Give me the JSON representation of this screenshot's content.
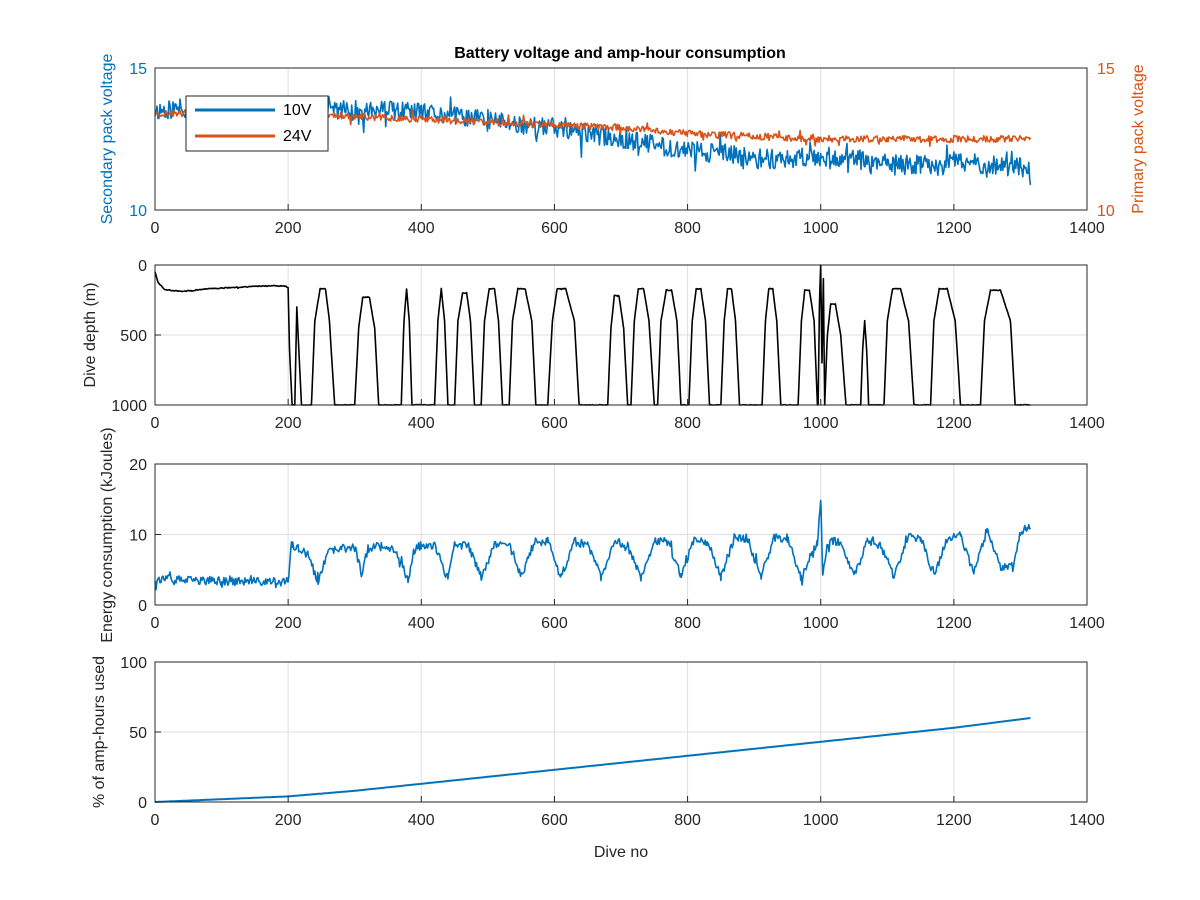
{
  "figure": {
    "title": "Battery voltage and amp-hour consumption"
  },
  "colors": {
    "blue": "#0072BD",
    "orange": "#D95319",
    "black": "#000000",
    "grid": "#dfdfdf",
    "axis": "#262626"
  },
  "chart_data": [
    {
      "id": "voltage",
      "type": "line",
      "title": "Battery voltage and amp-hour consumption",
      "xlabel": "",
      "ylabel": "Secondary pack voltage",
      "y2label": "Primary pack voltage",
      "xlim": [
        0,
        1400
      ],
      "ylim": [
        10,
        15
      ],
      "y2lim": [
        10,
        15
      ],
      "xticks": [
        0,
        200,
        400,
        600,
        800,
        1000,
        1200,
        1400
      ],
      "yticks": [
        10,
        15
      ],
      "y2ticks": [
        10,
        15
      ],
      "grid": true,
      "legend": {
        "placement": "top-left",
        "entries": [
          "10V",
          "24V"
        ]
      },
      "series": [
        {
          "name": "10V",
          "color": "#0072BD",
          "axis": "left",
          "noise": 0.35,
          "seed": 11,
          "x": [
            0,
            50,
            100,
            150,
            200,
            250,
            300,
            350,
            400,
            450,
            500,
            550,
            600,
            650,
            700,
            750,
            800,
            850,
            900,
            950,
            1000,
            1050,
            1100,
            1150,
            1200,
            1250,
            1300,
            1315
          ],
          "y": [
            13.5,
            13.6,
            13.6,
            13.5,
            13.6,
            13.6,
            13.5,
            13.5,
            13.4,
            13.3,
            13.2,
            13.0,
            12.9,
            12.7,
            12.5,
            12.3,
            12.1,
            12.0,
            11.8,
            11.8,
            11.9,
            11.8,
            11.6,
            11.6,
            11.7,
            11.6,
            11.5,
            11.2
          ]
        },
        {
          "name": "24V",
          "color": "#D95319",
          "axis": "right",
          "noise": 0.12,
          "seed": 23,
          "x": [
            0,
            100,
            200,
            300,
            400,
            500,
            600,
            700,
            800,
            900,
            1000,
            1100,
            1200,
            1300,
            1315
          ],
          "y": [
            13.4,
            13.4,
            13.4,
            13.3,
            13.2,
            13.1,
            13.0,
            12.9,
            12.7,
            12.6,
            12.5,
            12.5,
            12.5,
            12.5,
            12.5
          ]
        }
      ]
    },
    {
      "id": "depth",
      "type": "line",
      "xlabel": "",
      "ylabel": "Dive depth (m)",
      "xlim": [
        0,
        1400
      ],
      "ylim": [
        0,
        1000
      ],
      "reverse_y": true,
      "xticks": [
        0,
        200,
        400,
        600,
        800,
        1000,
        1200,
        1400
      ],
      "yticks": [
        0,
        500,
        1000
      ],
      "grid": true,
      "series": [
        {
          "name": "",
          "color": "#000000",
          "noise": 3,
          "seed": 5,
          "x": [
            0,
            5,
            15,
            40,
            80,
            120,
            160,
            195,
            200,
            202,
            206,
            210,
            213,
            220,
            235,
            240,
            248,
            256,
            262,
            270,
            300,
            306,
            312,
            322,
            330,
            336,
            370,
            374,
            378,
            382,
            386,
            420,
            425,
            430,
            435,
            440,
            450,
            455,
            462,
            468,
            474,
            480,
            490,
            495,
            502,
            510,
            516,
            522,
            532,
            537,
            545,
            556,
            566,
            572,
            590,
            597,
            604,
            617,
            630,
            637,
            680,
            685,
            690,
            697,
            704,
            710,
            715,
            720,
            726,
            734,
            742,
            750,
            755,
            760,
            768,
            776,
            784,
            790,
            802,
            807,
            813,
            820,
            827,
            833,
            850,
            855,
            860,
            866,
            872,
            878,
            912,
            917,
            922,
            928,
            934,
            940,
            966,
            971,
            976,
            983,
            990,
            995,
            996,
            998,
            1000,
            1002,
            1004,
            1006,
            1010,
            1015,
            1022,
            1030,
            1038,
            1045,
            1060,
            1063,
            1066,
            1069,
            1072,
            1075,
            1095,
            1100,
            1108,
            1120,
            1132,
            1140,
            1165,
            1170,
            1178,
            1190,
            1202,
            1210,
            1240,
            1246,
            1255,
            1270,
            1285,
            1292,
            1300,
            1315
          ],
          "y": [
            50,
            130,
            175,
            190,
            170,
            160,
            150,
            150,
            160,
            600,
            1000,
            1000,
            300,
            1000,
            1000,
            400,
            170,
            170,
            400,
            1000,
            1000,
            450,
            230,
            230,
            450,
            1000,
            1000,
            400,
            170,
            400,
            1000,
            1000,
            400,
            170,
            400,
            1000,
            1000,
            400,
            200,
            200,
            400,
            1000,
            1000,
            400,
            170,
            170,
            400,
            1000,
            1000,
            400,
            170,
            170,
            400,
            1000,
            1000,
            400,
            170,
            170,
            400,
            1000,
            1000,
            450,
            220,
            220,
            450,
            1000,
            1000,
            400,
            170,
            170,
            400,
            1000,
            1000,
            400,
            180,
            180,
            400,
            1000,
            1000,
            400,
            170,
            170,
            400,
            1000,
            1000,
            400,
            170,
            170,
            400,
            1000,
            1000,
            400,
            170,
            170,
            400,
            1000,
            1000,
            400,
            180,
            180,
            400,
            1000,
            1000,
            300,
            0,
            700,
            100,
            1000,
            500,
            280,
            280,
            500,
            1000,
            1000,
            1000,
            600,
            400,
            600,
            1000,
            1000,
            1000,
            400,
            170,
            170,
            400,
            1000,
            1000,
            400,
            170,
            170,
            400,
            1000,
            1000,
            400,
            180,
            180,
            400,
            1000,
            1000,
            1000
          ]
        }
      ]
    },
    {
      "id": "energy",
      "type": "line",
      "xlabel": "",
      "ylabel": "Energy consumption (kJoules)",
      "xlim": [
        0,
        1400
      ],
      "ylim": [
        0,
        20
      ],
      "xticks": [
        0,
        200,
        400,
        600,
        800,
        1000,
        1200,
        1400
      ],
      "yticks": [
        0,
        10,
        20
      ],
      "grid": true,
      "series": [
        {
          "name": "",
          "color": "#0072BD",
          "noise": 0.6,
          "seed": 37,
          "x": [
            0,
            50,
            100,
            150,
            200,
            205,
            215,
            230,
            245,
            260,
            280,
            300,
            310,
            320,
            340,
            360,
            380,
            390,
            400,
            420,
            440,
            450,
            470,
            490,
            510,
            530,
            550,
            570,
            590,
            610,
            630,
            650,
            670,
            690,
            710,
            730,
            750,
            770,
            790,
            810,
            830,
            850,
            870,
            890,
            910,
            930,
            950,
            970,
            995,
            1000,
            1003,
            1010,
            1030,
            1050,
            1070,
            1090,
            1110,
            1130,
            1150,
            1170,
            1190,
            1210,
            1230,
            1250,
            1270,
            1290,
            1300,
            1310,
            1315
          ],
          "y": [
            3.7,
            3.5,
            3.4,
            3.3,
            3.3,
            8.5,
            8.0,
            7.0,
            3.2,
            7.5,
            8.0,
            8.2,
            4.5,
            8.0,
            8.5,
            8.0,
            3.5,
            8.0,
            8.5,
            8.5,
            3.5,
            8.5,
            8.5,
            4.0,
            8.5,
            9.0,
            4.0,
            9.0,
            9.0,
            4.0,
            9.0,
            8.5,
            4.0,
            9.0,
            8.5,
            4.0,
            9.0,
            9.0,
            4.0,
            9.5,
            9.0,
            4.0,
            9.5,
            9.5,
            4.0,
            9.5,
            9.5,
            4.0,
            9.0,
            15.0,
            4.0,
            9.0,
            9.0,
            4.0,
            9.0,
            8.5,
            4.0,
            9.5,
            9.5,
            4.0,
            9.5,
            10.0,
            4.5,
            10.5,
            5.5,
            5.5,
            10.5,
            11.0,
            10.8
          ]
        }
      ]
    },
    {
      "id": "amphours",
      "type": "line",
      "xlabel": "Dive no",
      "ylabel": "% of amp-hours used",
      "xlim": [
        0,
        1400
      ],
      "ylim": [
        0,
        100
      ],
      "xticks": [
        0,
        200,
        400,
        600,
        800,
        1000,
        1200,
        1400
      ],
      "yticks": [
        0,
        50,
        100
      ],
      "grid": true,
      "series": [
        {
          "name": "",
          "color": "#0072BD",
          "noise": 0,
          "seed": 1,
          "x": [
            0,
            100,
            200,
            300,
            400,
            500,
            600,
            700,
            800,
            900,
            1000,
            1100,
            1200,
            1315
          ],
          "y": [
            0,
            2,
            4,
            8,
            13,
            18,
            23,
            28,
            33,
            38,
            43,
            48,
            53,
            60
          ]
        }
      ]
    }
  ]
}
